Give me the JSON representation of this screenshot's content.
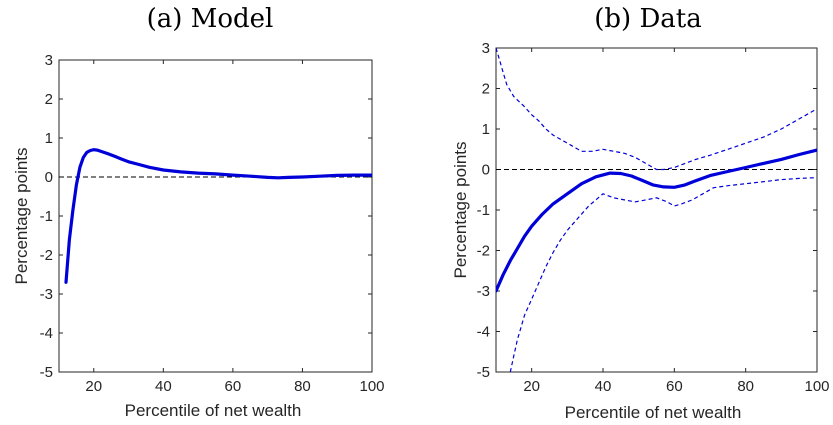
{
  "chart_data": [
    {
      "type": "line",
      "title": "(a) Model",
      "xlabel": "Percentile of net wealth",
      "ylabel": "Percentage points",
      "xlim": [
        10,
        100
      ],
      "ylim": [
        -5,
        3
      ],
      "xticks": [
        20,
        40,
        60,
        80,
        100
      ],
      "yticks": [
        3,
        2,
        1,
        0,
        -1,
        -2,
        -3,
        -4,
        -5
      ],
      "zero_line": true,
      "series": [
        {
          "style": "solid",
          "color": "#0000d9",
          "x": [
            12,
            13,
            14,
            15,
            16,
            17,
            18,
            19,
            20,
            21,
            22,
            24,
            26,
            28,
            30,
            33,
            36,
            40,
            45,
            50,
            55,
            60,
            65,
            70,
            73,
            76,
            80,
            85,
            90,
            95,
            100
          ],
          "y": [
            -2.7,
            -1.6,
            -0.85,
            -0.2,
            0.25,
            0.5,
            0.63,
            0.68,
            0.7,
            0.69,
            0.66,
            0.6,
            0.53,
            0.46,
            0.39,
            0.32,
            0.25,
            0.18,
            0.13,
            0.1,
            0.08,
            0.05,
            0.02,
            -0.01,
            -0.02,
            -0.01,
            0.0,
            0.02,
            0.04,
            0.05,
            0.05
          ]
        }
      ]
    },
    {
      "type": "line",
      "title": "(b) Data",
      "xlabel": "Percentile of net wealth",
      "ylabel": "Percentage points",
      "xlim": [
        10,
        100
      ],
      "ylim": [
        -5,
        3
      ],
      "xticks": [
        20,
        40,
        60,
        80,
        100
      ],
      "yticks": [
        3,
        2,
        1,
        0,
        -1,
        -2,
        -3,
        -4,
        -5
      ],
      "zero_line": true,
      "series": [
        {
          "style": "solid",
          "color": "#0000d9",
          "x": [
            10,
            12,
            14,
            16,
            18,
            20,
            23,
            26,
            30,
            34,
            38,
            42,
            45,
            48,
            51,
            54,
            57,
            60,
            63,
            66,
            70,
            75,
            80,
            85,
            90,
            95,
            100
          ],
          "y": [
            -3.0,
            -2.6,
            -2.25,
            -1.95,
            -1.65,
            -1.4,
            -1.1,
            -0.85,
            -0.6,
            -0.35,
            -0.18,
            -0.09,
            -0.1,
            -0.16,
            -0.27,
            -0.38,
            -0.43,
            -0.44,
            -0.38,
            -0.28,
            -0.15,
            -0.05,
            0.05,
            0.15,
            0.25,
            0.37,
            0.48
          ]
        },
        {
          "style": "dashed",
          "color": "#0000d9",
          "x": [
            10,
            11,
            12,
            13,
            15,
            18,
            20,
            22,
            24,
            26,
            28,
            31,
            34,
            37,
            40,
            43,
            46,
            49,
            52,
            55,
            57,
            60,
            63,
            66,
            70,
            75,
            80,
            85,
            90,
            95,
            100
          ],
          "y": [
            3.0,
            2.7,
            2.4,
            2.1,
            1.8,
            1.55,
            1.35,
            1.2,
            1.0,
            0.85,
            0.75,
            0.6,
            0.45,
            0.45,
            0.5,
            0.45,
            0.4,
            0.3,
            0.15,
            0.0,
            0.0,
            0.05,
            0.15,
            0.25,
            0.35,
            0.5,
            0.65,
            0.8,
            1.0,
            1.25,
            1.5
          ]
        },
        {
          "style": "dashed",
          "color": "#0000d9",
          "x": [
            14,
            15,
            16,
            17,
            18,
            20,
            22,
            24,
            26,
            28,
            30,
            33,
            36,
            40,
            43,
            46,
            49,
            52,
            55,
            58,
            60,
            62,
            65,
            68,
            71,
            75,
            80,
            85,
            90,
            95,
            100
          ],
          "y": [
            -5.0,
            -4.6,
            -4.2,
            -3.9,
            -3.6,
            -3.2,
            -2.8,
            -2.4,
            -2.05,
            -1.75,
            -1.5,
            -1.2,
            -0.9,
            -0.6,
            -0.7,
            -0.75,
            -0.8,
            -0.75,
            -0.7,
            -0.8,
            -0.9,
            -0.85,
            -0.75,
            -0.6,
            -0.45,
            -0.4,
            -0.35,
            -0.3,
            -0.25,
            -0.22,
            -0.2
          ]
        }
      ]
    }
  ]
}
